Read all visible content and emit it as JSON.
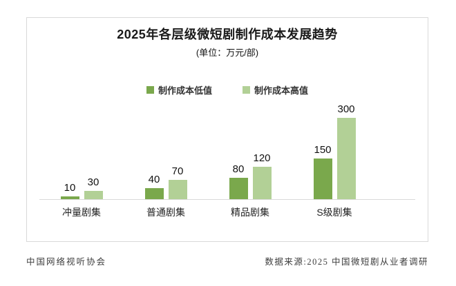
{
  "title": "2025年各层级微短剧制作成本发展趋势",
  "subtitle": "(单位：万元/部)",
  "legend": {
    "low_label": "制作成本低值",
    "high_label": "制作成本高值"
  },
  "chart_data": {
    "type": "bar",
    "title": "2025年各层级微短剧制作成本发展趋势",
    "unit_note": "(单位：万元/部)",
    "categories": [
      "冲量剧集",
      "普通剧集",
      "精品剧集",
      "S级剧集"
    ],
    "series": [
      {
        "name": "制作成本低值",
        "color": "#7aa84c",
        "values": [
          10,
          40,
          80,
          150
        ]
      },
      {
        "name": "制作成本高值",
        "color": "#b2d096",
        "values": [
          30,
          70,
          120,
          300
        ]
      }
    ],
    "ylim": [
      0,
      300
    ],
    "grid": false,
    "legend_position": "top",
    "value_labels": true
  },
  "footer": {
    "left": "中国网络视听协会",
    "right": "数据来源:2025 中国微短剧从业者调研"
  },
  "colors": {
    "frame_border": "#d9d9d9",
    "axis_line": "#d9d9d9",
    "title_text": "#1a1a1a",
    "footer_text": "#3d3d3d",
    "bar_low": "#7aa84c",
    "bar_high": "#b2d096"
  }
}
